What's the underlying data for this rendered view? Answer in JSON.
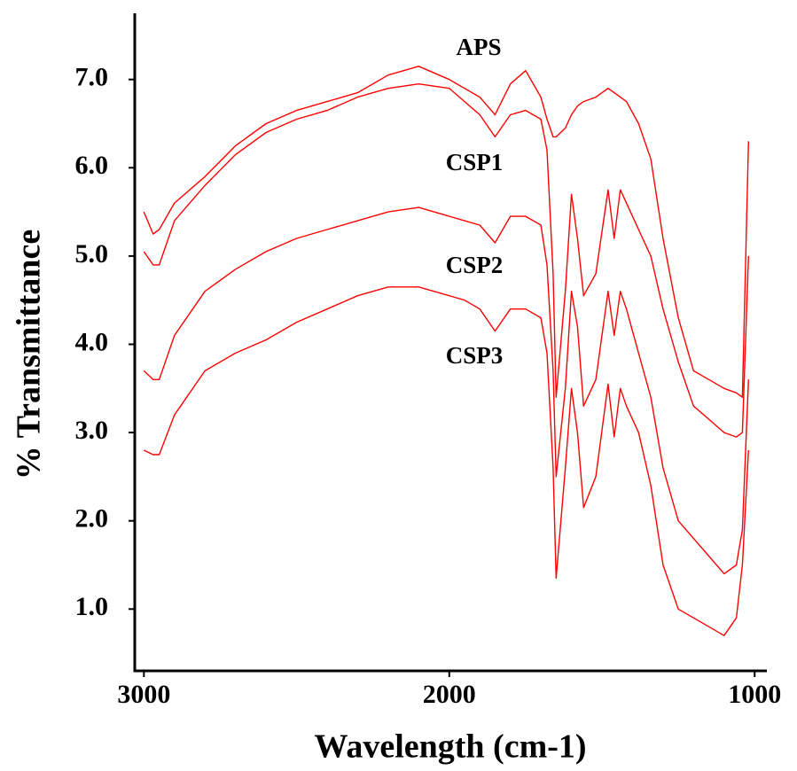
{
  "chart_data": {
    "type": "line",
    "xlabel": "Wavelength (cm-1)",
    "ylabel": "% Transmittance",
    "x": [
      3000,
      2970,
      2950,
      2900,
      2800,
      2700,
      2600,
      2500,
      2400,
      2300,
      2200,
      2100,
      2000,
      1950,
      1900,
      1850,
      1800,
      1750,
      1700,
      1680,
      1660,
      1650,
      1620,
      1600,
      1580,
      1560,
      1520,
      1480,
      1460,
      1440,
      1420,
      1380,
      1340,
      1300,
      1250,
      1200,
      1150,
      1100,
      1060,
      1040,
      1020
    ],
    "series": [
      {
        "name": "APS",
        "color": "#ff0000",
        "values": [
          5.5,
          5.25,
          5.3,
          5.6,
          5.9,
          6.25,
          6.5,
          6.65,
          6.75,
          6.85,
          7.05,
          7.15,
          7.0,
          6.9,
          6.8,
          6.6,
          6.95,
          7.1,
          6.8,
          6.55,
          6.35,
          6.35,
          6.45,
          6.6,
          6.7,
          6.75,
          6.8,
          6.9,
          6.85,
          6.8,
          6.75,
          6.5,
          6.1,
          5.2,
          4.3,
          3.7,
          3.6,
          3.5,
          3.45,
          3.4,
          6.3
        ]
      },
      {
        "name": "CSP1",
        "color": "#ff0000",
        "values": [
          5.05,
          4.9,
          4.9,
          5.4,
          5.8,
          6.15,
          6.4,
          6.55,
          6.65,
          6.8,
          6.9,
          6.95,
          6.9,
          6.75,
          6.6,
          6.35,
          6.6,
          6.65,
          6.55,
          6.2,
          4.8,
          3.4,
          4.6,
          5.7,
          5.2,
          4.55,
          4.8,
          5.75,
          5.2,
          5.75,
          5.6,
          5.3,
          5.0,
          4.4,
          3.8,
          3.3,
          3.15,
          3.0,
          2.95,
          3.0,
          5.0
        ]
      },
      {
        "name": "CSP2",
        "color": "#ff0000",
        "values": [
          3.7,
          3.6,
          3.6,
          4.1,
          4.6,
          4.85,
          5.05,
          5.2,
          5.3,
          5.4,
          5.5,
          5.55,
          5.45,
          5.4,
          5.35,
          5.15,
          5.45,
          5.45,
          5.35,
          4.9,
          3.7,
          2.5,
          3.5,
          4.6,
          4.2,
          3.3,
          3.6,
          4.6,
          4.1,
          4.6,
          4.4,
          3.9,
          3.4,
          2.6,
          2.0,
          1.8,
          1.6,
          1.4,
          1.5,
          1.9,
          3.6
        ]
      },
      {
        "name": "CSP3",
        "color": "#ff0000",
        "values": [
          2.8,
          2.75,
          2.75,
          3.2,
          3.7,
          3.9,
          4.05,
          4.25,
          4.4,
          4.55,
          4.65,
          4.65,
          4.55,
          4.5,
          4.4,
          4.15,
          4.4,
          4.4,
          4.3,
          3.9,
          2.6,
          1.35,
          2.6,
          3.5,
          3.0,
          2.15,
          2.5,
          3.55,
          2.95,
          3.5,
          3.3,
          3.0,
          2.4,
          1.5,
          1.0,
          0.9,
          0.8,
          0.7,
          0.9,
          1.5,
          2.8
        ]
      }
    ],
    "xlim": [
      3030,
      960
    ],
    "xticks": [
      3000,
      2000,
      1000
    ],
    "ylim": [
      0.3,
      7.75
    ],
    "yticks": [
      {
        "value": 1,
        "label": "1.0"
      },
      {
        "value": 2,
        "label": "2.0"
      },
      {
        "value": 3,
        "label": "3.0"
      },
      {
        "value": 4,
        "label": "4.0"
      },
      {
        "value": 5,
        "label": "5.0"
      },
      {
        "value": 6,
        "label": "6.0"
      },
      {
        "value": 7,
        "label": "7.0"
      }
    ],
    "grid": false
  }
}
